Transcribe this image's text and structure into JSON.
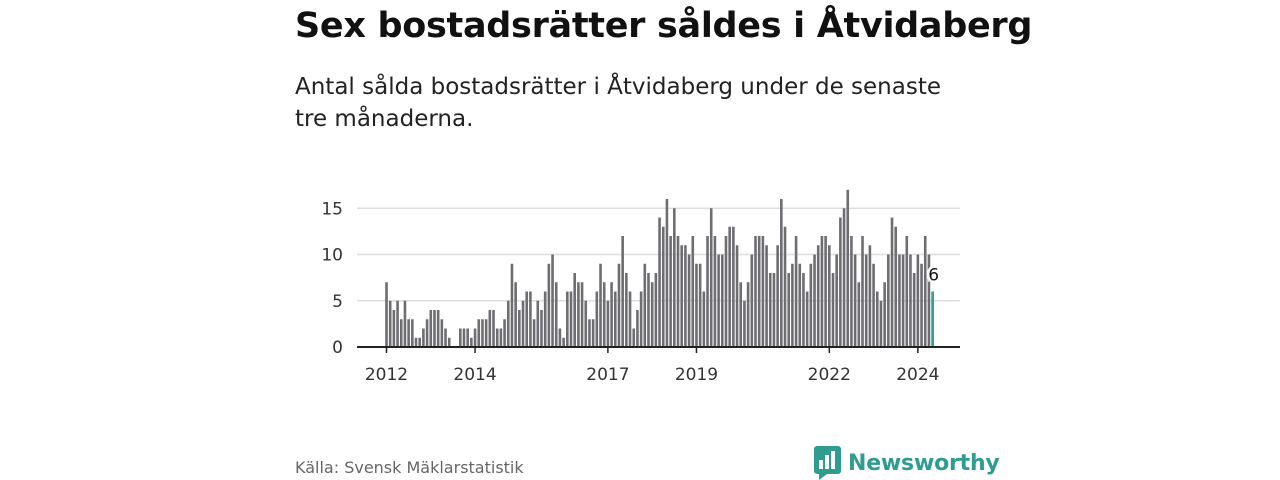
{
  "title": "Sex bostadsrätter såldes i Åtvidaberg",
  "subtitle": "Antal sålda bostadsrätter i Åtvidaberg under de senaste tre månaderna.",
  "source": "Källa: Svensk Mäklarstatistik",
  "brand": {
    "name": "Newsworthy"
  },
  "colors": {
    "bar": "#6e6d72",
    "highlight": "#2a9d8f",
    "grid": "#dddddd",
    "axis": "#222222",
    "brand": "#2e9d8f"
  },
  "chart_data": {
    "type": "bar",
    "title": "Sex bostadsrätter såldes i Åtvidaberg",
    "xlabel": "",
    "ylabel": "",
    "ylim": [
      0,
      17.5
    ],
    "yticks": [
      0,
      5,
      10,
      15
    ],
    "start": "2012-01",
    "xtick_labels": [
      {
        "label": "2012",
        "index": 0
      },
      {
        "label": "2014",
        "index": 24
      },
      {
        "label": "2017",
        "index": 60
      },
      {
        "label": "2019",
        "index": 84
      },
      {
        "label": "2022",
        "index": 120
      },
      {
        "label": "2024",
        "index": 144
      }
    ],
    "values": [
      7,
      5,
      4,
      5,
      3,
      5,
      3,
      3,
      1,
      1,
      2,
      3,
      4,
      4,
      4,
      3,
      2,
      1,
      0,
      0,
      2,
      2,
      2,
      1,
      2,
      3,
      3,
      3,
      4,
      4,
      2,
      2,
      3,
      5,
      9,
      7,
      4,
      5,
      6,
      6,
      3,
      5,
      4,
      6,
      9,
      10,
      7,
      2,
      1,
      6,
      6,
      8,
      7,
      7,
      5,
      3,
      3,
      6,
      9,
      7,
      5,
      7,
      6,
      9,
      12,
      8,
      6,
      2,
      4,
      6,
      9,
      8,
      7,
      8,
      14,
      13,
      16,
      12,
      15,
      12,
      11,
      11,
      10,
      12,
      9,
      9,
      6,
      12,
      15,
      12,
      10,
      10,
      12,
      13,
      13,
      11,
      7,
      5,
      7,
      10,
      12,
      12,
      12,
      11,
      8,
      8,
      11,
      16,
      13,
      8,
      9,
      12,
      9,
      8,
      6,
      9,
      10,
      11,
      12,
      12,
      11,
      8,
      10,
      14,
      15,
      17,
      12,
      10,
      7,
      12,
      10,
      11,
      9,
      6,
      5,
      7,
      10,
      14,
      13,
      10,
      10,
      12,
      10,
      8,
      10,
      9,
      12,
      10,
      6
    ],
    "highlight": {
      "index": 148,
      "value": 6,
      "label": "6"
    }
  }
}
